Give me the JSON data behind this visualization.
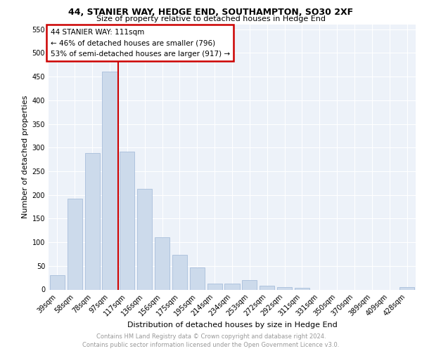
{
  "title": "44, STANIER WAY, HEDGE END, SOUTHAMPTON, SO30 2XF",
  "subtitle": "Size of property relative to detached houses in Hedge End",
  "xlabel": "Distribution of detached houses by size in Hedge End",
  "ylabel": "Number of detached properties",
  "categories": [
    "39sqm",
    "58sqm",
    "78sqm",
    "97sqm",
    "117sqm",
    "136sqm",
    "156sqm",
    "175sqm",
    "195sqm",
    "214sqm",
    "234sqm",
    "253sqm",
    "272sqm",
    "292sqm",
    "311sqm",
    "331sqm",
    "350sqm",
    "370sqm",
    "389sqm",
    "409sqm",
    "428sqm"
  ],
  "values": [
    30,
    192,
    288,
    460,
    291,
    213,
    110,
    73,
    46,
    13,
    13,
    20,
    8,
    5,
    4,
    0,
    0,
    0,
    0,
    0,
    5
  ],
  "bar_color": "#ccdaeb",
  "bar_edge_color": "#a8bedb",
  "vline_x": 3.5,
  "vline_color": "#cc0000",
  "annotation_lines": [
    "44 STANIER WAY: 111sqm",
    "← 46% of detached houses are smaller (796)",
    "53% of semi-detached houses are larger (917) →"
  ],
  "annotation_box_color": "#cc0000",
  "ylim": [
    0,
    560
  ],
  "yticks": [
    0,
    50,
    100,
    150,
    200,
    250,
    300,
    350,
    400,
    450,
    500,
    550
  ],
  "footer_line1": "Contains HM Land Registry data © Crown copyright and database right 2024.",
  "footer_line2": "Contains public sector information licensed under the Open Government Licence v3.0.",
  "bg_color": "#edf2f9",
  "grid_color": "#ffffff",
  "title_fontsize": 9,
  "subtitle_fontsize": 8,
  "ylabel_fontsize": 8,
  "xlabel_fontsize": 8,
  "tick_fontsize": 7,
  "annot_fontsize": 7.5,
  "footer_fontsize": 6
}
